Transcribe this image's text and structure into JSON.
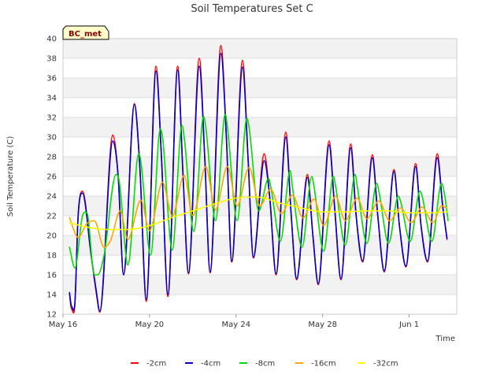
{
  "chart_data": {
    "type": "line",
    "title": "Soil Temperatures Set C",
    "xlabel": "Time",
    "ylabel": "Soil Temperature (C)",
    "badge": "BC_met",
    "ylim": [
      12,
      40
    ],
    "y_ticks": [
      12,
      14,
      16,
      18,
      20,
      22,
      24,
      26,
      28,
      30,
      32,
      34,
      36,
      38,
      40
    ],
    "xlim_days": [
      0,
      18.2
    ],
    "x_ticks": [
      {
        "label": "May 16",
        "day": 0
      },
      {
        "label": "May 20",
        "day": 4
      },
      {
        "label": "May 24",
        "day": 8
      },
      {
        "label": "May 28",
        "day": 12
      },
      {
        "label": "Jun 1",
        "day": 16
      }
    ],
    "grid": true,
    "legend_position": "bottom",
    "series": [
      {
        "name": "-2cm",
        "color": "#ff0000",
        "x": [
          0.3,
          0.4,
          0.55,
          0.7,
          0.9,
          1.3,
          1.55,
          1.7,
          2.3,
          2.55,
          2.8,
          3.3,
          3.55,
          3.85,
          4.3,
          4.55,
          4.85,
          5.3,
          5.55,
          5.8,
          6.3,
          6.55,
          6.8,
          7.3,
          7.55,
          7.8,
          8.3,
          8.55,
          8.8,
          9.3,
          9.55,
          9.85,
          10.3,
          10.55,
          10.8,
          11.3,
          11.55,
          11.8,
          12.3,
          12.55,
          12.85,
          13.3,
          13.55,
          13.85,
          14.3,
          14.55,
          14.85,
          15.3,
          15.55,
          15.85,
          16.3,
          16.55,
          16.85,
          17.3,
          17.55,
          17.75
        ],
        "y": [
          14.0,
          12.5,
          13.0,
          22.0,
          24.5,
          18.0,
          14.0,
          12.2,
          30.2,
          26.0,
          16.0,
          33.4,
          27.0,
          13.3,
          37.2,
          28.0,
          13.8,
          37.2,
          26.0,
          16.1,
          38.0,
          28.0,
          16.2,
          39.3,
          30.0,
          17.3,
          37.8,
          28.0,
          17.7,
          28.3,
          24.0,
          16.0,
          30.5,
          22.0,
          15.5,
          26.2,
          20.0,
          15.0,
          29.6,
          23.0,
          15.5,
          29.3,
          22.0,
          17.3,
          28.2,
          22.0,
          16.3,
          26.7,
          21.0,
          16.8,
          27.3,
          21.0,
          17.3,
          28.3,
          23.0,
          19.6
        ]
      },
      {
        "name": "-4cm",
        "color": "#0000cc",
        "x": [
          0.3,
          0.4,
          0.55,
          0.7,
          0.9,
          1.3,
          1.55,
          1.7,
          2.3,
          2.55,
          2.8,
          3.3,
          3.55,
          3.85,
          4.3,
          4.55,
          4.85,
          5.3,
          5.55,
          5.8,
          6.3,
          6.55,
          6.8,
          7.3,
          7.55,
          7.8,
          8.3,
          8.55,
          8.8,
          9.3,
          9.55,
          9.85,
          10.3,
          10.55,
          10.8,
          11.3,
          11.55,
          11.8,
          12.3,
          12.55,
          12.85,
          13.3,
          13.55,
          13.85,
          14.3,
          14.55,
          14.85,
          15.3,
          15.55,
          15.85,
          16.3,
          16.55,
          16.85,
          17.3,
          17.55,
          17.75
        ],
        "y": [
          14.2,
          12.8,
          13.2,
          22.0,
          24.3,
          18.0,
          14.2,
          12.3,
          29.6,
          26.0,
          16.0,
          33.3,
          27.0,
          13.5,
          36.7,
          28.0,
          14.0,
          36.8,
          26.0,
          16.2,
          37.2,
          28.0,
          16.3,
          38.5,
          30.0,
          17.4,
          37.1,
          28.0,
          17.8,
          27.6,
          24.0,
          16.1,
          30.0,
          22.0,
          15.6,
          25.9,
          20.0,
          15.1,
          29.2,
          23.0,
          15.6,
          28.9,
          22.0,
          17.4,
          27.9,
          22.0,
          16.4,
          26.5,
          21.0,
          16.9,
          27.0,
          21.0,
          17.4,
          27.9,
          23.0,
          19.7
        ]
      },
      {
        "name": "-8cm",
        "color": "#00dd00",
        "x": [
          0.3,
          0.55,
          0.9,
          1.1,
          1.45,
          1.6,
          1.9,
          2.45,
          2.6,
          3.0,
          3.5,
          3.6,
          4.05,
          4.5,
          4.6,
          5.05,
          5.5,
          5.6,
          6.05,
          6.5,
          6.6,
          7.05,
          7.5,
          7.6,
          8.05,
          8.5,
          8.6,
          9.05,
          9.5,
          9.6,
          10.05,
          10.5,
          10.6,
          11.05,
          11.5,
          11.6,
          12.05,
          12.5,
          12.6,
          13.05,
          13.5,
          13.6,
          14.05,
          14.5,
          14.6,
          15.05,
          15.5,
          15.6,
          16.05,
          16.5,
          16.6,
          17.05,
          17.5,
          17.65,
          17.8
        ],
        "y": [
          18.8,
          16.7,
          22.0,
          22.3,
          16.0,
          16.0,
          18.0,
          26.2,
          25.5,
          17.0,
          28.3,
          27.5,
          18.0,
          30.8,
          30.0,
          18.5,
          31.2,
          30.0,
          20.4,
          32.1,
          31.0,
          21.5,
          32.3,
          31.0,
          21.5,
          31.9,
          31.0,
          22.5,
          25.8,
          25.0,
          19.4,
          26.6,
          25.0,
          18.8,
          26.0,
          25.0,
          18.4,
          26.0,
          25.0,
          19.0,
          26.2,
          25.0,
          19.2,
          25.3,
          24.5,
          19.2,
          24.0,
          23.5,
          19.4,
          24.5,
          24.0,
          19.4,
          25.3,
          24.0,
          21.5
        ]
      },
      {
        "name": "-16cm",
        "color": "#ffa500",
        "x": [
          0.3,
          0.7,
          1.1,
          1.45,
          1.9,
          2.2,
          2.65,
          3.0,
          3.6,
          4.0,
          4.6,
          5.05,
          5.6,
          6.0,
          6.6,
          7.05,
          7.6,
          8.05,
          8.6,
          9.1,
          9.6,
          10.1,
          10.6,
          11.1,
          11.6,
          12.05,
          12.6,
          13.05,
          13.6,
          14.05,
          14.6,
          15.1,
          15.6,
          16.1,
          16.6,
          17.1,
          17.5,
          17.75
        ],
        "y": [
          21.8,
          19.8,
          21.2,
          21.5,
          18.8,
          19.5,
          22.5,
          19.6,
          23.6,
          20.5,
          25.4,
          22.0,
          26.1,
          22.0,
          27.0,
          22.6,
          27.0,
          23.0,
          26.9,
          23.0,
          24.7,
          22.2,
          24.1,
          21.8,
          23.7,
          21.0,
          24.0,
          21.5,
          23.8,
          21.7,
          23.5,
          21.5,
          22.8,
          21.3,
          22.9,
          21.3,
          23.0,
          22.8
        ]
      },
      {
        "name": "-32cm",
        "color": "#ffff00",
        "x": [
          0.3,
          1.0,
          2.0,
          3.0,
          4.0,
          5.0,
          6.0,
          7.0,
          8.0,
          9.0,
          10.0,
          11.0,
          12.0,
          13.0,
          14.0,
          15.0,
          16.0,
          17.0,
          17.75
        ],
        "y": [
          21.3,
          20.9,
          20.6,
          20.6,
          21.0,
          21.8,
          22.5,
          23.2,
          23.8,
          23.9,
          23.3,
          22.8,
          22.4,
          22.4,
          22.5,
          22.5,
          22.3,
          22.3,
          22.4
        ]
      }
    ]
  }
}
